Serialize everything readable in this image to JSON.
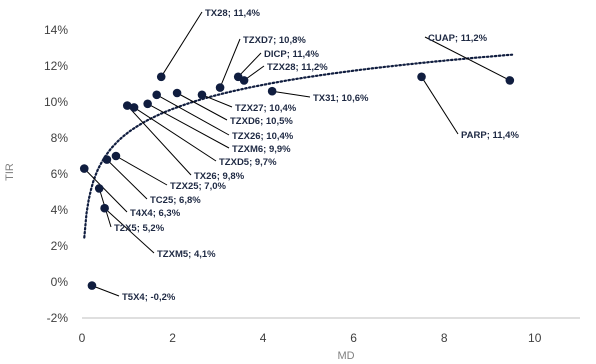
{
  "colors": {
    "marker": "#101d3f",
    "leader": "#000000",
    "axis": "#bfbfbf",
    "trend": "#101d3f"
  },
  "chart_data": {
    "type": "scatter",
    "title": "",
    "xlabel": "MD",
    "ylabel": "TIR",
    "xlim": [
      0,
      11
    ],
    "ylim": [
      -2,
      14
    ],
    "xticks": [
      0,
      2,
      4,
      6,
      8,
      10
    ],
    "yticks": [
      -2,
      0,
      2,
      4,
      6,
      8,
      10,
      12,
      14
    ],
    "yticklabels": [
      "-2%",
      "0%",
      "2%",
      "4%",
      "6%",
      "8%",
      "10%",
      "12%",
      "14%"
    ],
    "grid": false,
    "legend": "none",
    "trendline": "logarithmic (dotted)",
    "points": [
      {
        "label": "TX28; 11,4%",
        "x": 1.75,
        "y": 11.4
      },
      {
        "label": "TZXD7; 10,8%",
        "x": 3.05,
        "y": 10.8
      },
      {
        "label": "DICP; 11,4%",
        "x": 3.45,
        "y": 11.4
      },
      {
        "label": "TZX28; 11,2%",
        "x": 3.58,
        "y": 11.2
      },
      {
        "label": "CUAP; 11,2%",
        "x": 9.45,
        "y": 11.2
      },
      {
        "label": "TX31; 10,6%",
        "x": 4.2,
        "y": 10.6
      },
      {
        "label": "PARP; 11,4%",
        "x": 7.5,
        "y": 11.4
      },
      {
        "label": "TZX27; 10,4%",
        "x": 2.65,
        "y": 10.4
      },
      {
        "label": "TZXD6; 10,5%",
        "x": 2.1,
        "y": 10.5
      },
      {
        "label": "TZX26; 10,4%",
        "x": 1.65,
        "y": 10.4
      },
      {
        "label": "TZXM6; 9,9%",
        "x": 1.45,
        "y": 9.9
      },
      {
        "label": "TZXD5; 9,7%",
        "x": 1.15,
        "y": 9.7
      },
      {
        "label": "TX26; 9,8%",
        "x": 1.0,
        "y": 9.8
      },
      {
        "label": "TZX25; 7,0%",
        "x": 0.75,
        "y": 7.0
      },
      {
        "label": "TC25; 6,8%",
        "x": 0.55,
        "y": 6.8
      },
      {
        "label": "T4X4; 6,3%",
        "x": 0.05,
        "y": 6.3
      },
      {
        "label": "T2X5; 5,2%",
        "x": 0.38,
        "y": 5.2
      },
      {
        "label": "TZXM5; 4,1%",
        "x": 0.5,
        "y": 4.1
      },
      {
        "label": "T5X4; -0,2%",
        "x": 0.22,
        "y": -0.2
      }
    ]
  }
}
